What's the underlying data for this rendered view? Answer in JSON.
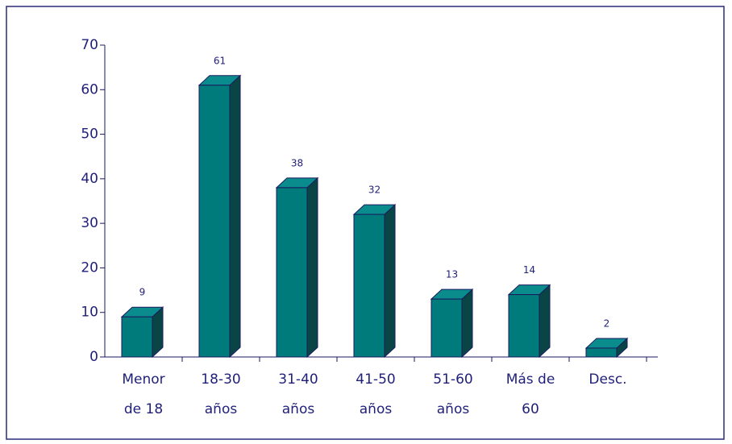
{
  "chart_data": {
    "type": "bar3d",
    "categories": [
      "Menor\nde 18",
      "18-30\naños",
      "31-40\naños",
      "41-50\naños",
      "51-60\naños",
      "Más de\n60",
      "Desc."
    ],
    "values": [
      9,
      61,
      38,
      32,
      13,
      14,
      2
    ],
    "color": "#007b7b",
    "ylim": [
      0,
      70
    ],
    "yticks": [
      0,
      10,
      20,
      30,
      40,
      50,
      60,
      70
    ],
    "grid": false
  }
}
